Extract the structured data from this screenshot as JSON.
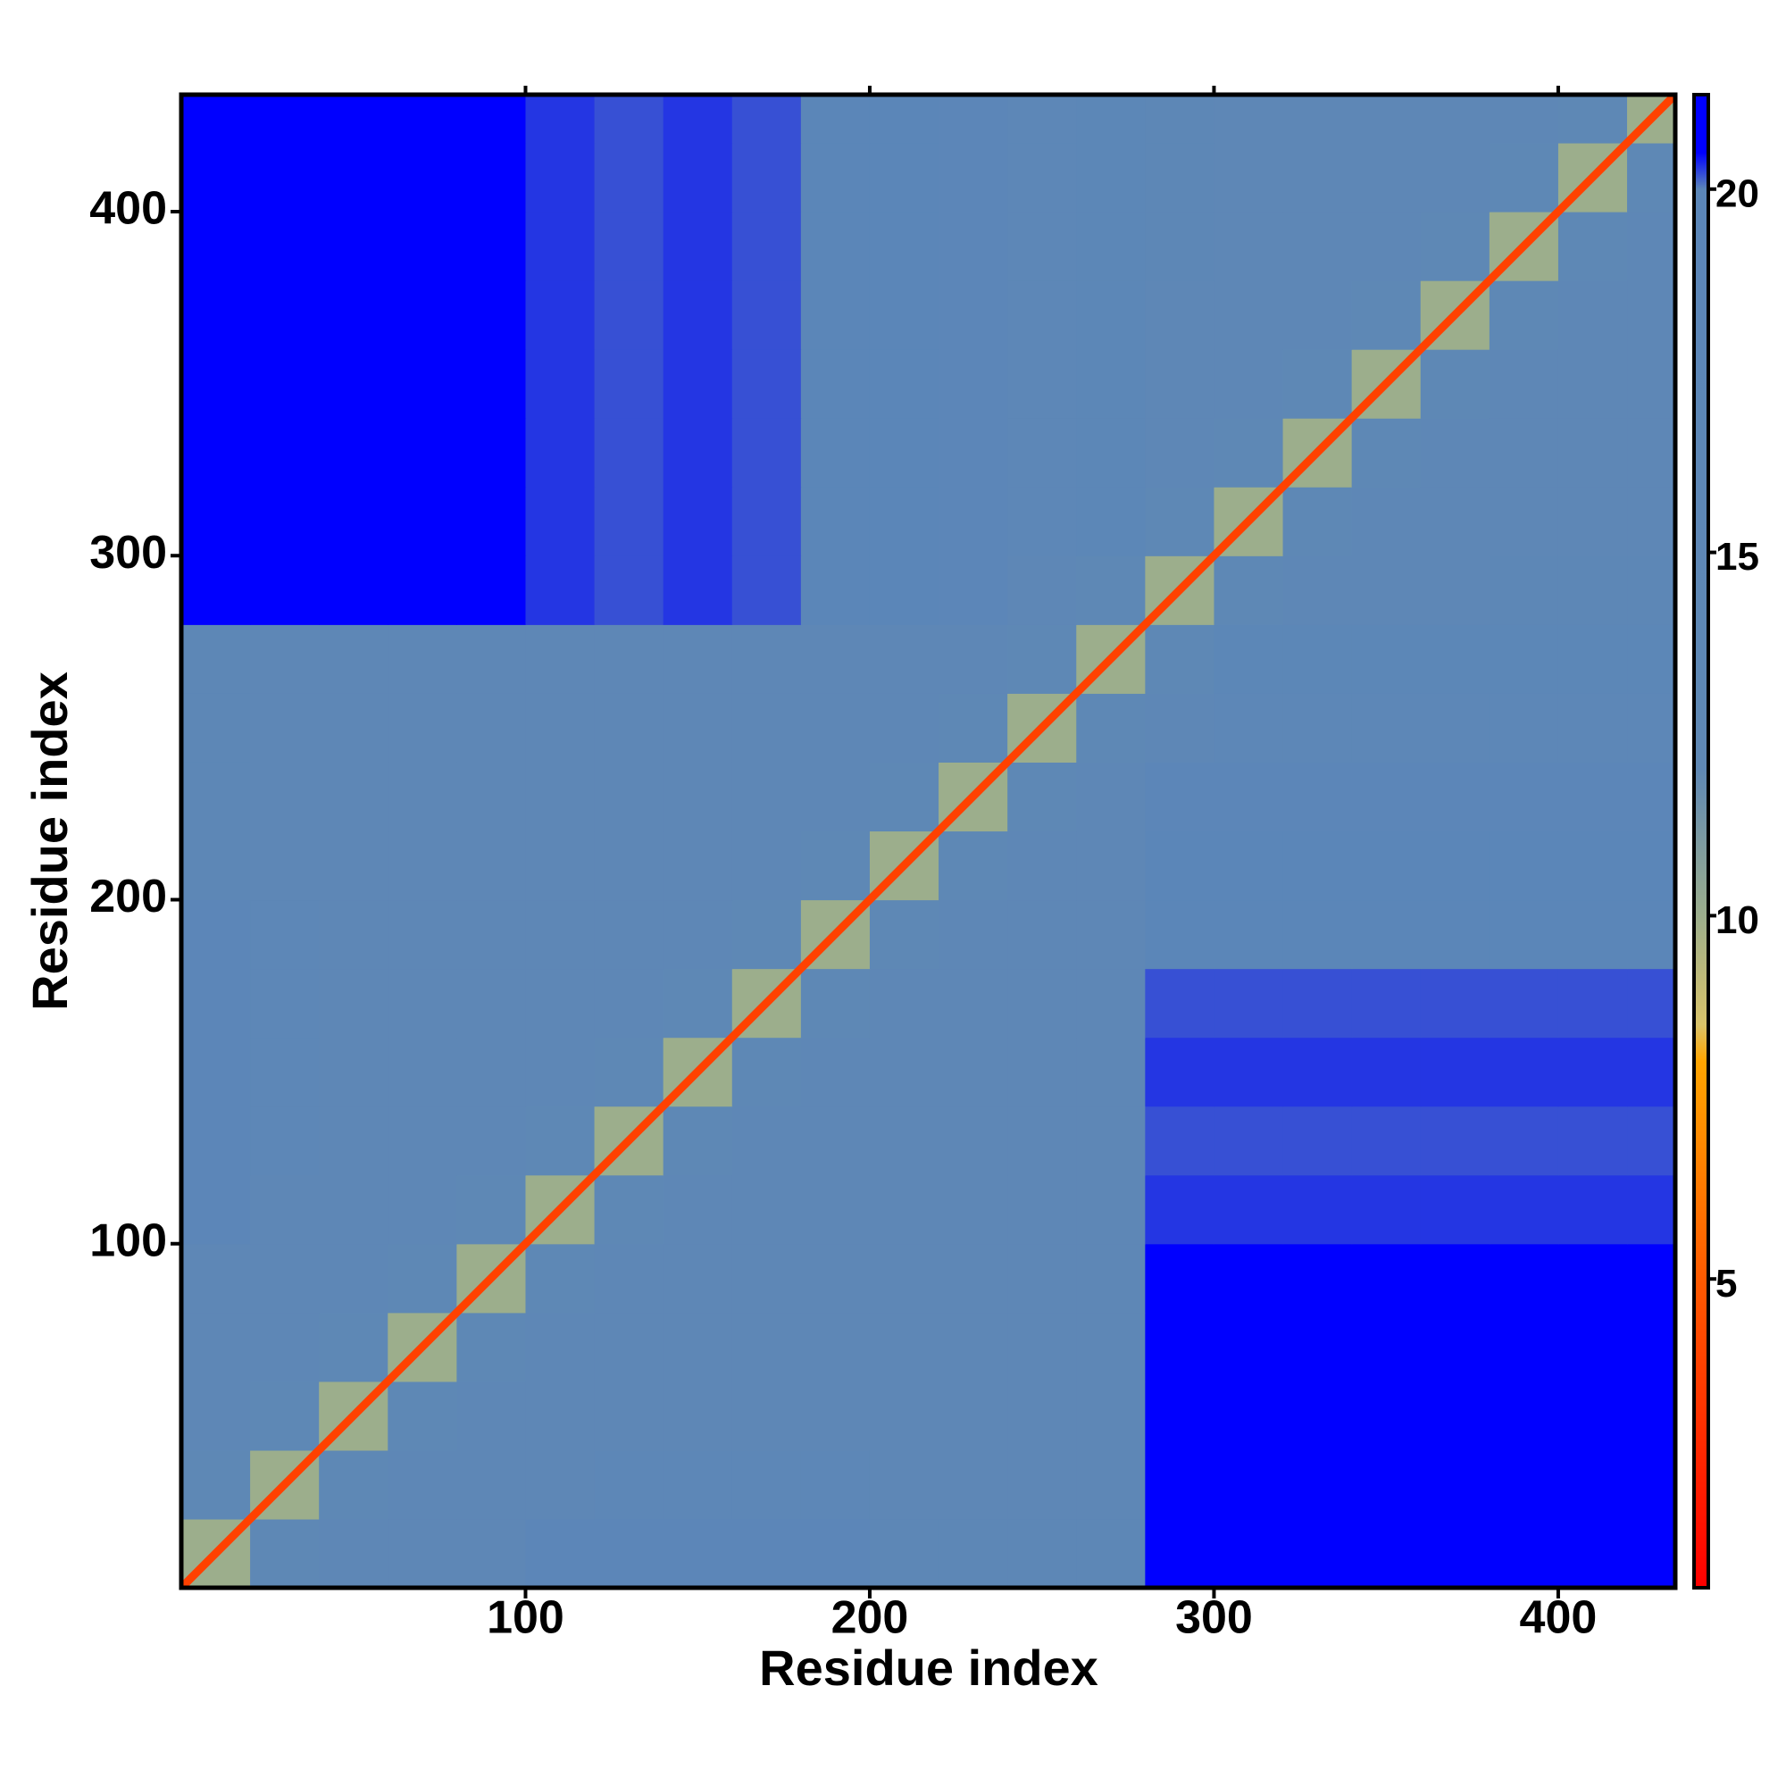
{
  "chart_data": {
    "type": "heatmap",
    "x_label": "Residue index",
    "y_label": "Residue index",
    "xlim": [
      0,
      434
    ],
    "ylim": [
      0,
      434
    ],
    "xticks": [
      100,
      200,
      300,
      400
    ],
    "yticks": [
      100,
      200,
      300,
      400
    ],
    "bins": [
      0,
      20,
      40,
      60,
      80,
      100,
      120,
      140,
      160,
      180,
      200,
      220,
      240,
      260,
      280,
      300,
      320,
      340,
      360,
      380,
      400,
      420,
      434
    ],
    "diagonal_value": 3.8,
    "z": [
      [
        10,
        14,
        15,
        15,
        15,
        19,
        19,
        19,
        19,
        19,
        16,
        16,
        16,
        16,
        21,
        21,
        21,
        21,
        21,
        21,
        21,
        21
      ],
      [
        14,
        10,
        14,
        15,
        15,
        15,
        17,
        17,
        17,
        17,
        15,
        15,
        15,
        15,
        21,
        21,
        21,
        21,
        21,
        21,
        21,
        21
      ],
      [
        15,
        14,
        10,
        14,
        15,
        15,
        15,
        15,
        15,
        15,
        15,
        15,
        15,
        15,
        21,
        21,
        21,
        21,
        21,
        21,
        21,
        21
      ],
      [
        15,
        15,
        14,
        10,
        14,
        15,
        15,
        15,
        15,
        15,
        15,
        15,
        15,
        15,
        21,
        21,
        21,
        21,
        21,
        21,
        21,
        21
      ],
      [
        15,
        15,
        15,
        14,
        10,
        14,
        15,
        15,
        15,
        15,
        15,
        15,
        15,
        15,
        20.8,
        20.8,
        20.8,
        20.8,
        20.8,
        20.8,
        20.8,
        20.8
      ],
      [
        19,
        15,
        15,
        15,
        14,
        10,
        14,
        15,
        15,
        15,
        15,
        15,
        15,
        15,
        20.3,
        20.3,
        20.3,
        20.3,
        20.3,
        20.3,
        20.3,
        20.3
      ],
      [
        19,
        17,
        15,
        15,
        15,
        14,
        10,
        14,
        15,
        15,
        15,
        15,
        15,
        15,
        20.2,
        20.2,
        20.2,
        20.2,
        20.2,
        20.2,
        20.2,
        20.2
      ],
      [
        19,
        17,
        15,
        15,
        15,
        15,
        14,
        10,
        14,
        15,
        15,
        15,
        15,
        15,
        20.3,
        20.3,
        20.3,
        20.3,
        20.3,
        20.3,
        20.3,
        20.3
      ],
      [
        19,
        17,
        15,
        15,
        15,
        15,
        15,
        14,
        10,
        14,
        15,
        15,
        15,
        15,
        20.2,
        20.2,
        20.2,
        20.2,
        20.2,
        20.2,
        20.2,
        20.2
      ],
      [
        19,
        17,
        15,
        15,
        15,
        15,
        15,
        15,
        14,
        10,
        14,
        15,
        15,
        15,
        20,
        20,
        20,
        20,
        20,
        20,
        20,
        20
      ],
      [
        16,
        15,
        15,
        15,
        15,
        15,
        15,
        15,
        15,
        14,
        10,
        14,
        15,
        15,
        19.5,
        19.5,
        19.5,
        19.5,
        19.5,
        19.5,
        19.5,
        19.5
      ],
      [
        16,
        15,
        15,
        15,
        15,
        15,
        15,
        15,
        15,
        15,
        14,
        10,
        14,
        15,
        19,
        19,
        19,
        19,
        19,
        19,
        19,
        19
      ],
      [
        16,
        15,
        15,
        15,
        15,
        15,
        15,
        15,
        15,
        15,
        15,
        14,
        10,
        14,
        15,
        17,
        17,
        17,
        17,
        17,
        17,
        17
      ],
      [
        16,
        15,
        15,
        15,
        15,
        15,
        15,
        15,
        15,
        15,
        15,
        15,
        14,
        10,
        14,
        18,
        18,
        18,
        18,
        18,
        18,
        18
      ],
      [
        21,
        21,
        21,
        21,
        20.8,
        20.3,
        20.2,
        20.3,
        20.2,
        20,
        19.5,
        19,
        15,
        14,
        10,
        14,
        15,
        15,
        15,
        16,
        16,
        16
      ],
      [
        21,
        21,
        21,
        21,
        20.8,
        20.3,
        20.2,
        20.3,
        20.2,
        20,
        19.5,
        19,
        17,
        18,
        14,
        10,
        14,
        15,
        15,
        15,
        15,
        15
      ],
      [
        21,
        21,
        21,
        21,
        20.8,
        20.3,
        20.2,
        20.3,
        20.2,
        20,
        19.5,
        19,
        17,
        18,
        15,
        14,
        10,
        14,
        15,
        15,
        15,
        15
      ],
      [
        21,
        21,
        21,
        21,
        20.8,
        20.3,
        20.2,
        20.3,
        20.2,
        20,
        19.5,
        19,
        17,
        18,
        15,
        15,
        14,
        10,
        14,
        15,
        15,
        15
      ],
      [
        21,
        21,
        21,
        21,
        20.8,
        20.3,
        20.2,
        20.3,
        20.2,
        20,
        19.5,
        19,
        17,
        18,
        15,
        15,
        15,
        14,
        10,
        14,
        15,
        15
      ],
      [
        21,
        21,
        21,
        21,
        20.8,
        20.3,
        20.2,
        20.3,
        20.2,
        20,
        19.5,
        19,
        17,
        18,
        16,
        15,
        15,
        15,
        14,
        10,
        14,
        15
      ],
      [
        21,
        21,
        21,
        21,
        20.8,
        20.3,
        20.2,
        20.3,
        20.2,
        20,
        19.5,
        19,
        17,
        18,
        16,
        15,
        15,
        15,
        15,
        14,
        10,
        14
      ],
      [
        21,
        21,
        21,
        21,
        20.8,
        20.3,
        20.2,
        20.3,
        20.2,
        20,
        19.5,
        19,
        17,
        18,
        16,
        15,
        15,
        15,
        15,
        15,
        14,
        10
      ]
    ],
    "colorscale": [
      {
        "value": 0.75,
        "color": "#ff0000"
      },
      {
        "value": 5,
        "color": "#ff5a00"
      },
      {
        "value": 8,
        "color": "#ffa500"
      },
      {
        "value": 8.5,
        "color": "#d9c36a"
      },
      {
        "value": 10,
        "color": "#9cae8c"
      },
      {
        "value": 12,
        "color": "#5f88b4"
      },
      {
        "value": 20,
        "color": "#5b86b8"
      },
      {
        "value": 20.5,
        "color": "#0000ff"
      },
      {
        "value": 21.3,
        "color": "#0000ff"
      }
    ],
    "colorbar_lim": [
      0.75,
      21.3
    ],
    "colorbar_ticks": [
      5,
      10,
      15,
      20
    ]
  }
}
